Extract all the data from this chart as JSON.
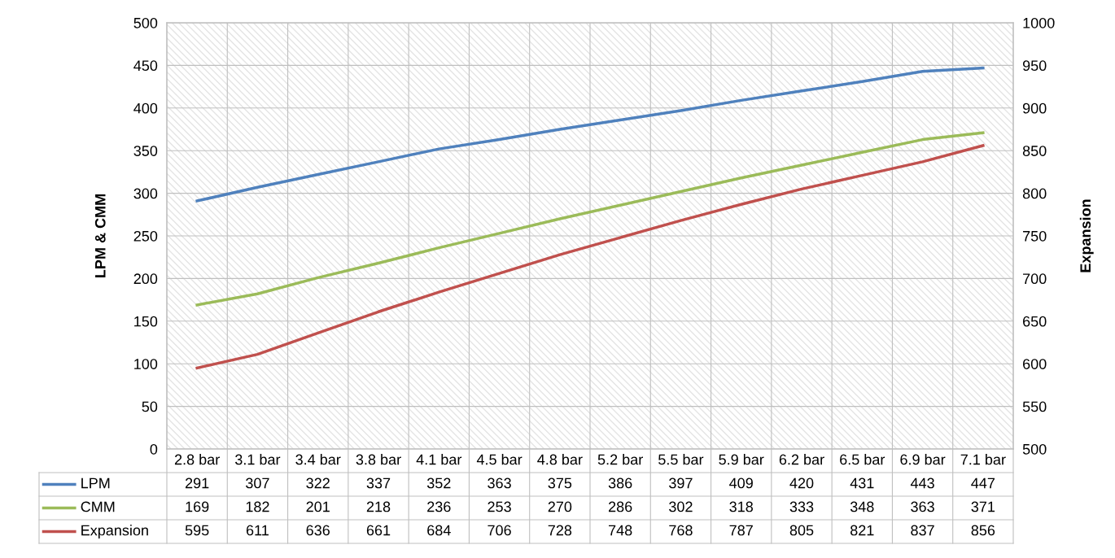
{
  "chart_data": {
    "type": "line",
    "ylabel": "LPM & CMM",
    "y2label": "Expansion",
    "categories": [
      "2.8 bar",
      "3.1 bar",
      "3.4 bar",
      "3.8 bar",
      "4.1 bar",
      "4.5 bar",
      "4.8 bar",
      "5.2 bar",
      "5.5 bar",
      "5.9 bar",
      "6.2 bar",
      "6.5 bar",
      "6.9 bar",
      "7.1 bar"
    ],
    "series": [
      {
        "name": "LPM",
        "color": "#4f81bd",
        "values": [
          291,
          307,
          322,
          337,
          352,
          363,
          375,
          386,
          397,
          409,
          420,
          431,
          443,
          447
        ]
      },
      {
        "name": "CMM",
        "color": "#9bbb59",
        "values": [
          169,
          182,
          201,
          218,
          236,
          253,
          270,
          286,
          302,
          318,
          333,
          348,
          363,
          371
        ]
      },
      {
        "name": "Expansion",
        "color": "#c0504d",
        "axis": "y2",
        "values": [
          595,
          611,
          636,
          661,
          684,
          706,
          728,
          748,
          768,
          787,
          805,
          821,
          837,
          856
        ]
      }
    ],
    "ylim": [
      0,
      500
    ],
    "yticks": [
      0,
      50,
      100,
      150,
      200,
      250,
      300,
      350,
      400,
      450,
      500
    ],
    "y2lim": [
      500,
      1000
    ],
    "y2ticks": [
      500,
      550,
      600,
      650,
      700,
      750,
      800,
      850,
      900,
      950,
      1000
    ],
    "grid": true,
    "legend": "bottom",
    "data_labels": true,
    "marker": "none",
    "line_style": "solid"
  }
}
